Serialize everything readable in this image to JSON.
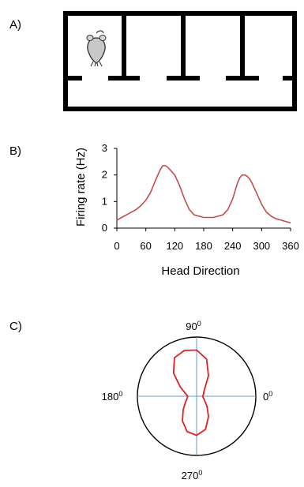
{
  "panels": {
    "a": {
      "label": "A)"
    },
    "b": {
      "label": "B)"
    },
    "c": {
      "label": "C)"
    }
  },
  "maze": {
    "wall_color": "#000000",
    "arms": 4,
    "icon": "rat-icon"
  },
  "chart_data": [
    {
      "type": "line",
      "xlabel": "Head Direction",
      "ylabel": "Firing rate (Hz)",
      "xlim": [
        0,
        360
      ],
      "ylim": [
        0,
        3
      ],
      "xticks": [
        "0",
        "60",
        "120",
        "180",
        "240",
        "300",
        "360"
      ],
      "yticks": [
        "0",
        "1",
        "2",
        "3"
      ],
      "grid": false,
      "series": [
        {
          "color": "#c0504d",
          "x": [
            0,
            10,
            20,
            30,
            40,
            50,
            55,
            60,
            70,
            80,
            85,
            90,
            95,
            100,
            105,
            110,
            115,
            120,
            130,
            140,
            150,
            160,
            170,
            180,
            190,
            200,
            210,
            220,
            230,
            240,
            245,
            250,
            255,
            260,
            265,
            270,
            275,
            280,
            290,
            300,
            310,
            320,
            330,
            340,
            350,
            360
          ],
          "y": [
            0.3,
            0.4,
            0.5,
            0.6,
            0.7,
            0.85,
            0.95,
            1.05,
            1.35,
            1.8,
            2.0,
            2.2,
            2.35,
            2.35,
            2.3,
            2.2,
            2.1,
            2.0,
            1.6,
            1.1,
            0.7,
            0.5,
            0.45,
            0.4,
            0.4,
            0.4,
            0.45,
            0.5,
            0.7,
            1.1,
            1.4,
            1.7,
            1.9,
            2.0,
            2.0,
            1.95,
            1.85,
            1.7,
            1.3,
            0.9,
            0.6,
            0.45,
            0.35,
            0.3,
            0.25,
            0.2
          ]
        }
      ]
    },
    {
      "type": "polar",
      "angle_labels": {
        "a0": "0",
        "a90": "90",
        "a180": "180",
        "a270": "270"
      },
      "degree_mark": "0",
      "axis_color": "#5b9bd5",
      "series": [
        {
          "color": "#e02020",
          "angles_deg": [
            0,
            15,
            30,
            45,
            60,
            75,
            90,
            105,
            120,
            135,
            150,
            165,
            180,
            195,
            210,
            225,
            240,
            255,
            270,
            285,
            300,
            315,
            330,
            345
          ],
          "r": [
            0.1,
            0.12,
            0.14,
            0.2,
            0.4,
            0.65,
            0.78,
            0.8,
            0.75,
            0.55,
            0.32,
            0.2,
            0.15,
            0.17,
            0.22,
            0.32,
            0.48,
            0.62,
            0.66,
            0.58,
            0.4,
            0.25,
            0.16,
            0.12
          ]
        }
      ]
    }
  ]
}
